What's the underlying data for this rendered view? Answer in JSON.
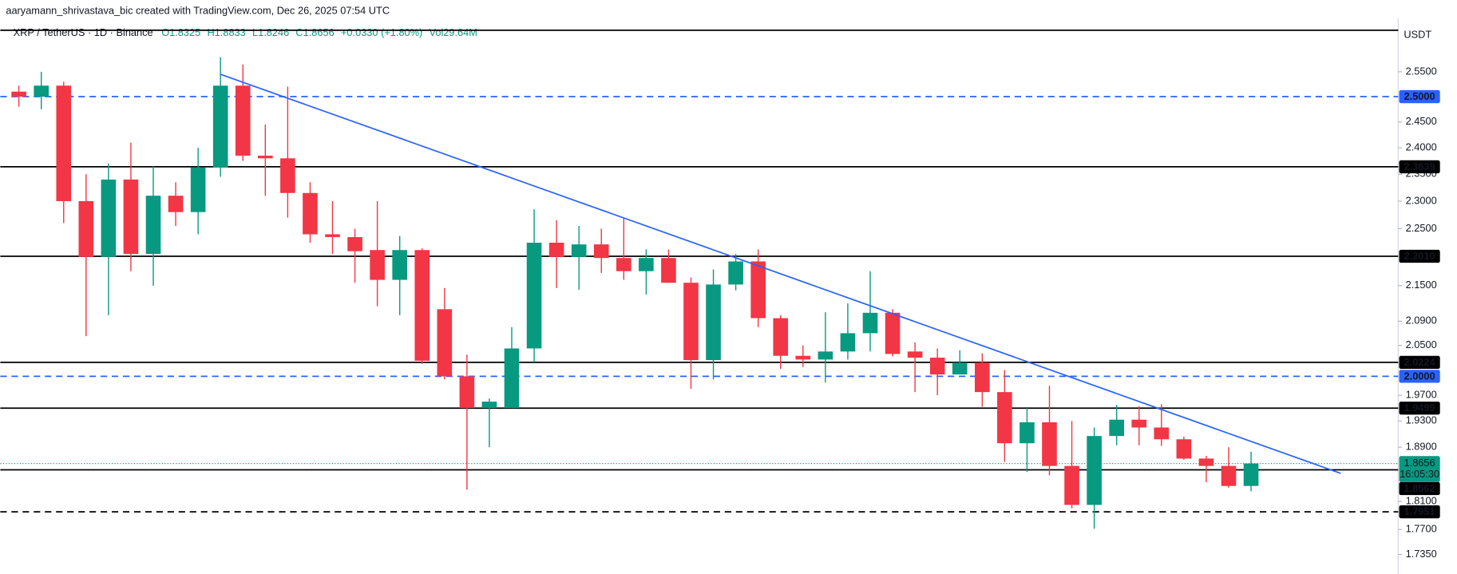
{
  "header": {
    "credit": "aaryamann_shrivastava_bic created with TradingView.com, Dec 26, 2025 07:54 UTC",
    "symbol": "XRP / TetherUS · 1D · Binance",
    "open": "O1.8325",
    "high": "H1.8833",
    "low": "L1.8246",
    "close": "C1.8656",
    "change": "+0.0330 (+1.80%)",
    "volume": "Vol29.64M"
  },
  "chart_data": {
    "type": "candlestick",
    "log_scale": true,
    "y_unit": "USDT",
    "up_color": "#089981",
    "down_color": "#f23645",
    "ylim": [
      1.712,
      2.641
    ],
    "yticks": [
      {
        "value": 2.55,
        "label": "2.5500"
      },
      {
        "value": 2.45,
        "label": "2.4500"
      },
      {
        "value": 2.4,
        "label": "2.4000"
      },
      {
        "value": 2.35,
        "label": "2.3500"
      },
      {
        "value": 2.3,
        "label": "2.3000"
      },
      {
        "value": 2.25,
        "label": "2.2500"
      },
      {
        "value": 2.15,
        "label": "2.1500"
      },
      {
        "value": 2.09,
        "label": "2.0900"
      },
      {
        "value": 2.05,
        "label": "2.0500"
      },
      {
        "value": 1.97,
        "label": "1.9700"
      },
      {
        "value": 1.93,
        "label": "1.9300"
      },
      {
        "value": 1.89,
        "label": "1.8900"
      },
      {
        "value": 1.81,
        "label": "1.8100"
      },
      {
        "value": 1.77,
        "label": "1.7700"
      },
      {
        "value": 1.735,
        "label": "1.7350"
      }
    ],
    "open": [
      2.51,
      2.5,
      2.522,
      2.3,
      2.2,
      2.34,
      2.205,
      2.31,
      2.28,
      2.363,
      2.522,
      2.385,
      2.38,
      2.315,
      2.24,
      2.235,
      2.212,
      2.16,
      2.212,
      2.11,
      2.0,
      1.95,
      1.95,
      2.045,
      2.225,
      2.2,
      2.222,
      2.198,
      2.175,
      2.198,
      2.155,
      2.026,
      2.152,
      2.192,
      2.095,
      2.033,
      2.027,
      2.04,
      2.07,
      2.104,
      2.04,
      2.03,
      2.003,
      2.022,
      1.975,
      1.896,
      1.928,
      1.862,
      1.805,
      1.907,
      1.932,
      1.92,
      1.902,
      1.873,
      1.862,
      1.8325
    ],
    "high": [
      2.522,
      2.55,
      2.53,
      2.35,
      2.37,
      2.41,
      2.365,
      2.335,
      2.4,
      2.58,
      2.565,
      2.445,
      2.52,
      2.335,
      2.3,
      2.25,
      2.3,
      2.237,
      2.215,
      2.146,
      2.035,
      1.965,
      2.08,
      2.285,
      2.265,
      2.255,
      2.25,
      2.27,
      2.213,
      2.213,
      2.164,
      2.178,
      2.205,
      2.213,
      2.1,
      2.05,
      2.105,
      2.12,
      2.175,
      2.11,
      2.055,
      2.045,
      2.042,
      2.037,
      2.01,
      1.95,
      1.985,
      1.93,
      1.92,
      1.955,
      1.953,
      1.956,
      1.906,
      1.877,
      1.89,
      1.8833
    ],
    "low": [
      2.48,
      2.475,
      2.26,
      2.065,
      2.1,
      2.175,
      2.15,
      2.255,
      2.24,
      2.345,
      2.375,
      2.31,
      2.27,
      2.225,
      2.205,
      2.155,
      2.115,
      2.1,
      2.02,
      1.995,
      1.827,
      1.89,
      1.95,
      2.023,
      2.146,
      2.143,
      2.172,
      2.16,
      2.135,
      2.155,
      1.98,
      1.995,
      2.142,
      2.08,
      2.012,
      2.015,
      1.99,
      2.027,
      2.04,
      2.032,
      1.975,
      1.97,
      2.003,
      1.952,
      1.868,
      1.853,
      1.848,
      1.8,
      1.771,
      1.893,
      1.893,
      1.892,
      1.871,
      1.838,
      1.83,
      1.8246
    ],
    "close": [
      2.5,
      2.522,
      2.3,
      2.2,
      2.34,
      2.205,
      2.31,
      2.28,
      2.363,
      2.522,
      2.385,
      2.38,
      2.315,
      2.24,
      2.235,
      2.21,
      2.16,
      2.212,
      2.025,
      2.0,
      1.95,
      1.96,
      2.045,
      2.225,
      2.2,
      2.222,
      2.198,
      2.175,
      2.198,
      2.155,
      2.026,
      2.152,
      2.192,
      2.095,
      2.033,
      2.027,
      2.04,
      2.07,
      2.104,
      2.036,
      2.03,
      2.003,
      2.022,
      1.975,
      1.896,
      1.928,
      1.862,
      1.805,
      1.907,
      1.932,
      1.92,
      1.902,
      1.873,
      1.862,
      1.8325,
      1.8656
    ],
    "levels": [
      {
        "price": 2.636,
        "style": "solid",
        "color": "#000000"
      },
      {
        "price": 2.5,
        "label": "2.5000",
        "style": "dashed",
        "color": "#2962ff"
      },
      {
        "price": 2.3639,
        "style": "solid",
        "color": "#000000"
      },
      {
        "price": 2.201,
        "label": "2.2010",
        "style": "solid",
        "color": "#000000"
      },
      {
        "price": 2.0224,
        "style": "solid",
        "color": "#000000"
      },
      {
        "price": 2.0,
        "label": "2.0000",
        "style": "dashed",
        "color": "#2962ff"
      },
      {
        "price": 1.9499,
        "style": "solid",
        "color": "#000000"
      },
      {
        "price": 1.8562,
        "style": "solid",
        "color": "#000000"
      },
      {
        "price": 1.7951,
        "style": "dashed",
        "color": "#000000"
      }
    ],
    "current_price": {
      "price": 1.8656,
      "countdown": "16:05:30",
      "color": "#089981"
    },
    "trendline": {
      "x": [
        9,
        59
      ],
      "y": [
        2.545,
        1.851
      ],
      "color": "#2962ff"
    }
  }
}
